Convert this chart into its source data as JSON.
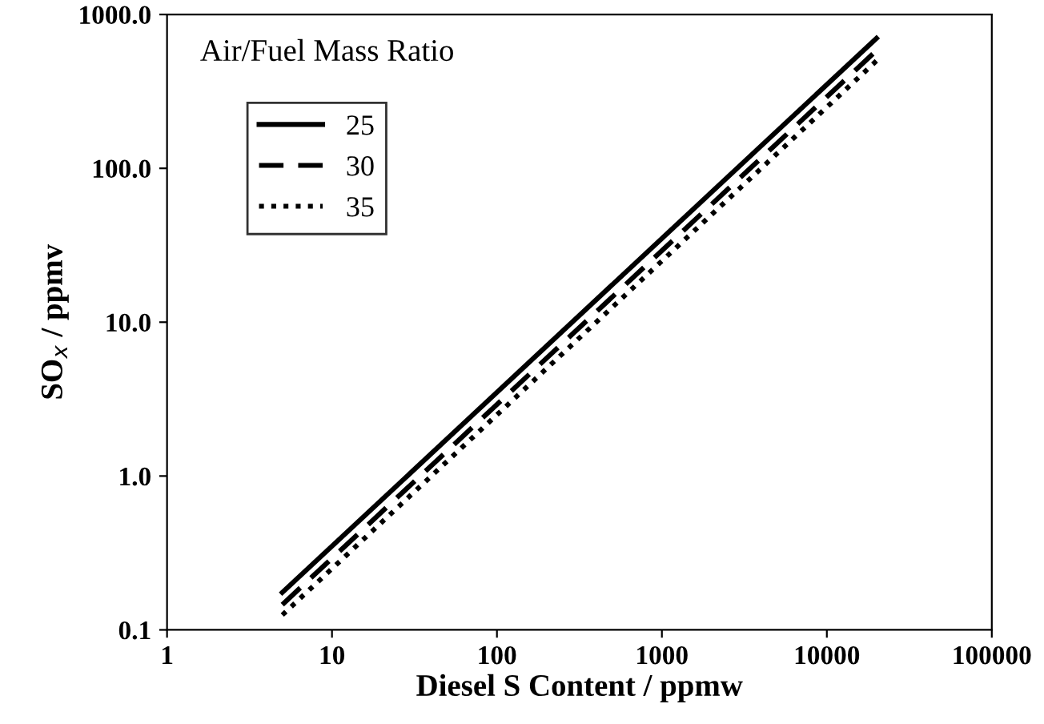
{
  "chart_data": {
    "type": "line",
    "xlabel": "Diesel S Content / ppmw",
    "ylabel": "SO$_{x}$ / ppmv",
    "legend_title": "Air/Fuel Mass Ratio",
    "log": "xy",
    "legend": "top left",
    "x": [
      5,
      20000
    ],
    "xlim": [
      1,
      100000
    ],
    "xticks": [
      1,
      10,
      100,
      1000,
      10000,
      100000
    ],
    "ylim": [
      0.1,
      1000
    ],
    "yticks": [
      {
        "value": 0.1,
        "label": "0.1"
      },
      {
        "value": 1,
        "label": "1.0"
      },
      {
        "value": 10,
        "label": "10.0"
      },
      {
        "value": 100,
        "label": "100.0"
      },
      {
        "value": 1000,
        "label": "1000.0"
      }
    ],
    "series": [
      {
        "name": "25",
        "color": "#000000",
        "line_style": "solid",
        "values": [
          0.175,
          700
        ]
      },
      {
        "name": "30",
        "color": "#000000",
        "line_style": "dashed",
        "values": [
          0.146,
          583
        ]
      },
      {
        "name": "35",
        "color": "#000000",
        "line_style": "dotted",
        "values": [
          0.125,
          500
        ]
      }
    ]
  }
}
